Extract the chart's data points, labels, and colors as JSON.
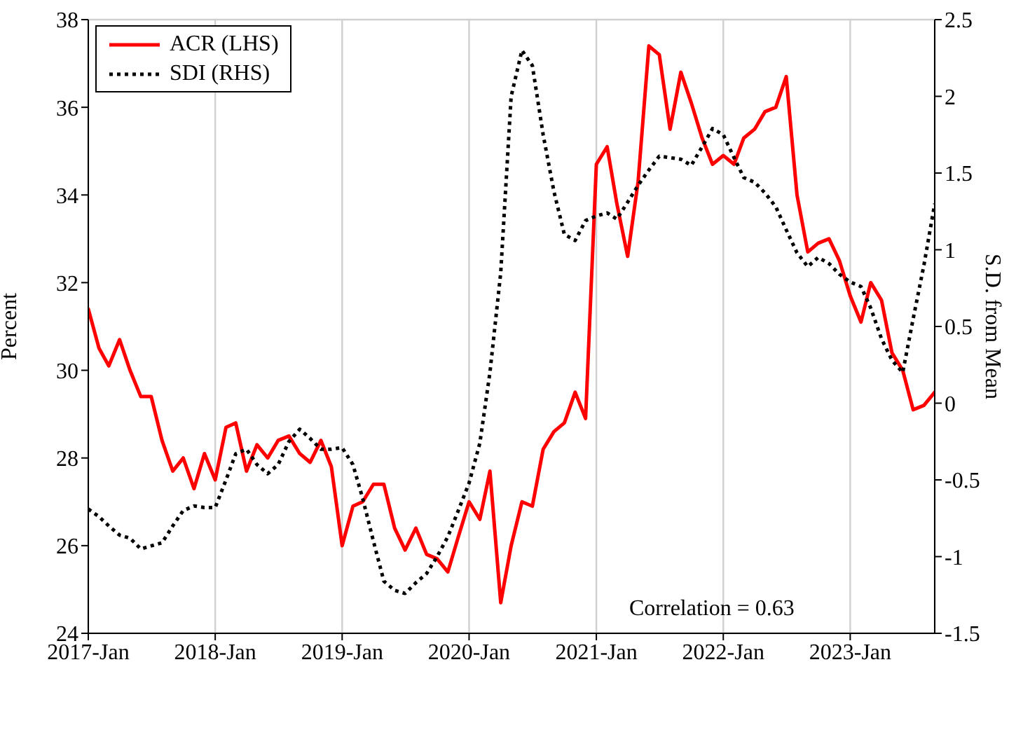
{
  "chart_data": {
    "type": "line",
    "xlabel": null,
    "ylabel": "Percent",
    "y2label": "S.D. from Mean",
    "x": [
      "2017-01",
      "2017-02",
      "2017-03",
      "2017-04",
      "2017-05",
      "2017-06",
      "2017-07",
      "2017-08",
      "2017-09",
      "2017-10",
      "2017-11",
      "2017-12",
      "2018-01",
      "2018-02",
      "2018-03",
      "2018-04",
      "2018-05",
      "2018-06",
      "2018-07",
      "2018-08",
      "2018-09",
      "2018-10",
      "2018-11",
      "2018-12",
      "2019-01",
      "2019-02",
      "2019-03",
      "2019-04",
      "2019-05",
      "2019-06",
      "2019-07",
      "2019-08",
      "2019-09",
      "2019-10",
      "2019-11",
      "2019-12",
      "2020-01",
      "2020-02",
      "2020-03",
      "2020-04",
      "2020-05",
      "2020-06",
      "2020-07",
      "2020-08",
      "2020-09",
      "2020-10",
      "2020-11",
      "2020-12",
      "2021-01",
      "2021-02",
      "2021-03",
      "2021-04",
      "2021-05",
      "2021-06",
      "2021-07",
      "2021-08",
      "2021-09",
      "2021-10",
      "2021-11",
      "2021-12",
      "2022-01",
      "2022-02",
      "2022-03",
      "2022-04",
      "2022-05",
      "2022-06",
      "2022-07",
      "2022-08",
      "2022-09",
      "2022-10",
      "2022-11",
      "2022-12",
      "2023-01",
      "2023-02",
      "2023-03",
      "2023-04",
      "2023-05",
      "2023-06",
      "2023-07",
      "2023-08",
      "2023-09"
    ],
    "series": [
      {
        "name": "ACR (LHS)",
        "color": "#ff0000",
        "line_style": "solid",
        "values": [
          31.4,
          30.5,
          30.1,
          30.7,
          30.0,
          29.4,
          29.4,
          28.4,
          27.7,
          28.0,
          27.3,
          28.1,
          27.5,
          28.7,
          28.8,
          27.7,
          28.3,
          28.0,
          28.4,
          28.5,
          28.1,
          27.9,
          28.4,
          27.8,
          26.0,
          26.9,
          27.0,
          27.4,
          27.4,
          26.4,
          25.9,
          26.4,
          25.8,
          25.7,
          25.4,
          26.2,
          27.0,
          26.6,
          27.7,
          24.7,
          26.0,
          27.0,
          26.9,
          28.2,
          28.6,
          28.8,
          29.5,
          28.9,
          34.7,
          35.1,
          33.8,
          32.6,
          34.3,
          37.4,
          37.2,
          35.5,
          36.8,
          36.1,
          35.3,
          34.7,
          34.9,
          34.7,
          35.3,
          35.5,
          35.9,
          36.0,
          36.7,
          34.0,
          32.7,
          32.9,
          33.0,
          32.5,
          31.7,
          31.1,
          32.0,
          31.6,
          30.4,
          30.0,
          29.1,
          29.2,
          29.5
        ]
      },
      {
        "name": "SDI (RHS)",
        "color": "#000000",
        "line_style": "dotted",
        "axis": "y2",
        "values": [
          -0.69,
          -0.74,
          -0.8,
          -0.86,
          -0.88,
          -0.95,
          -0.93,
          -0.91,
          -0.8,
          -0.7,
          -0.67,
          -0.68,
          -0.68,
          -0.5,
          -0.33,
          -0.3,
          -0.4,
          -0.46,
          -0.4,
          -0.25,
          -0.17,
          -0.23,
          -0.3,
          -0.3,
          -0.29,
          -0.4,
          -0.62,
          -0.9,
          -1.16,
          -1.22,
          -1.24,
          -1.17,
          -1.11,
          -1.0,
          -0.87,
          -0.7,
          -0.52,
          -0.26,
          0.2,
          0.85,
          2.0,
          2.3,
          2.2,
          1.75,
          1.38,
          1.1,
          1.06,
          1.19,
          1.22,
          1.24,
          1.2,
          1.31,
          1.42,
          1.52,
          1.61,
          1.6,
          1.59,
          1.55,
          1.67,
          1.79,
          1.75,
          1.6,
          1.47,
          1.44,
          1.37,
          1.28,
          1.13,
          0.98,
          0.89,
          0.95,
          0.91,
          0.84,
          0.79,
          0.76,
          0.62,
          0.42,
          0.28,
          0.2,
          0.55,
          0.9,
          1.3
        ]
      }
    ],
    "xlim": [
      "2017-01",
      "2023-09"
    ],
    "xticks": [
      {
        "value": "2017-01",
        "label": "2017-Jan"
      },
      {
        "value": "2018-01",
        "label": "2018-Jan"
      },
      {
        "value": "2019-01",
        "label": "2019-Jan"
      },
      {
        "value": "2020-01",
        "label": "2020-Jan"
      },
      {
        "value": "2021-01",
        "label": "2021-Jan"
      },
      {
        "value": "2022-01",
        "label": "2022-Jan"
      },
      {
        "value": "2023-01",
        "label": "2023-Jan"
      }
    ],
    "ylim": [
      24,
      38
    ],
    "yticks": [
      24,
      26,
      28,
      30,
      32,
      34,
      36,
      38
    ],
    "y2lim": [
      -1.5,
      2.5
    ],
    "y2ticks": [
      -1.5,
      -1,
      -0.5,
      0,
      0.5,
      1,
      1.5,
      2,
      2.5
    ],
    "grid": true,
    "legend": "top left",
    "marker": "none",
    "annotations": [
      "Correlation = 0.63"
    ]
  }
}
